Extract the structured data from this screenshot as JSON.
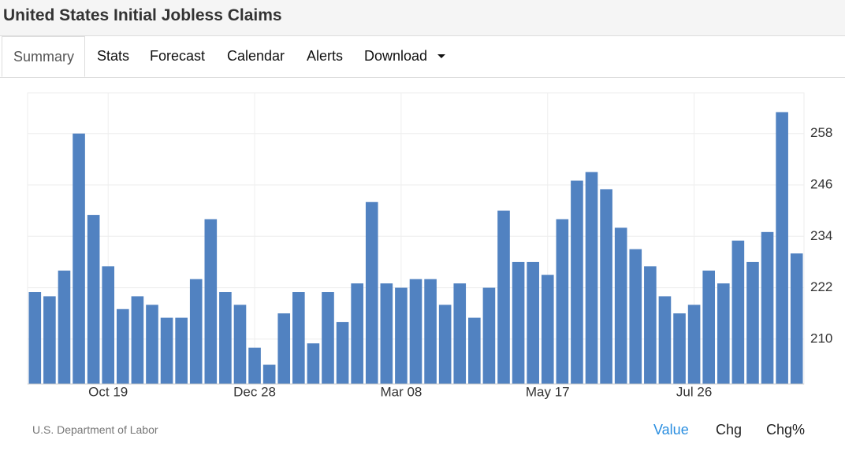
{
  "header": {
    "title": "United States Initial Jobless Claims"
  },
  "tabs": [
    "Summary",
    "Stats",
    "Forecast",
    "Calendar",
    "Alerts",
    "Download"
  ],
  "chart_data": {
    "type": "bar",
    "categories": [
      null,
      null,
      null,
      null,
      null,
      "Oct 19",
      null,
      null,
      null,
      null,
      null,
      null,
      null,
      null,
      null,
      "Dec 28",
      null,
      null,
      null,
      null,
      null,
      null,
      null,
      null,
      null,
      "Mar 08",
      null,
      null,
      null,
      null,
      null,
      null,
      null,
      null,
      null,
      "May 17",
      null,
      null,
      null,
      null,
      null,
      null,
      null,
      null,
      null,
      "Jul 26",
      null,
      null,
      null,
      null,
      null,
      null,
      null
    ],
    "values": [
      221,
      220,
      226,
      258,
      239,
      227,
      217,
      220,
      218,
      215,
      215,
      224,
      238,
      221,
      218,
      208,
      204,
      216,
      221,
      209,
      221,
      214,
      223,
      242,
      223,
      222,
      224,
      224,
      218,
      223,
      215,
      222,
      240,
      228,
      228,
      225,
      238,
      247,
      249,
      245,
      236,
      231,
      227,
      220,
      216,
      218,
      226,
      223,
      233,
      228,
      235,
      263,
      230
    ],
    "color": "#5182c1",
    "ylim": [
      199.5,
      267.5
    ],
    "yticks": [
      210,
      222,
      234,
      246,
      258
    ],
    "grid": true
  },
  "footer": {
    "source": "U.S. Department of Labor",
    "buttons": [
      "Value",
      "Chg",
      "Chg%"
    ]
  }
}
